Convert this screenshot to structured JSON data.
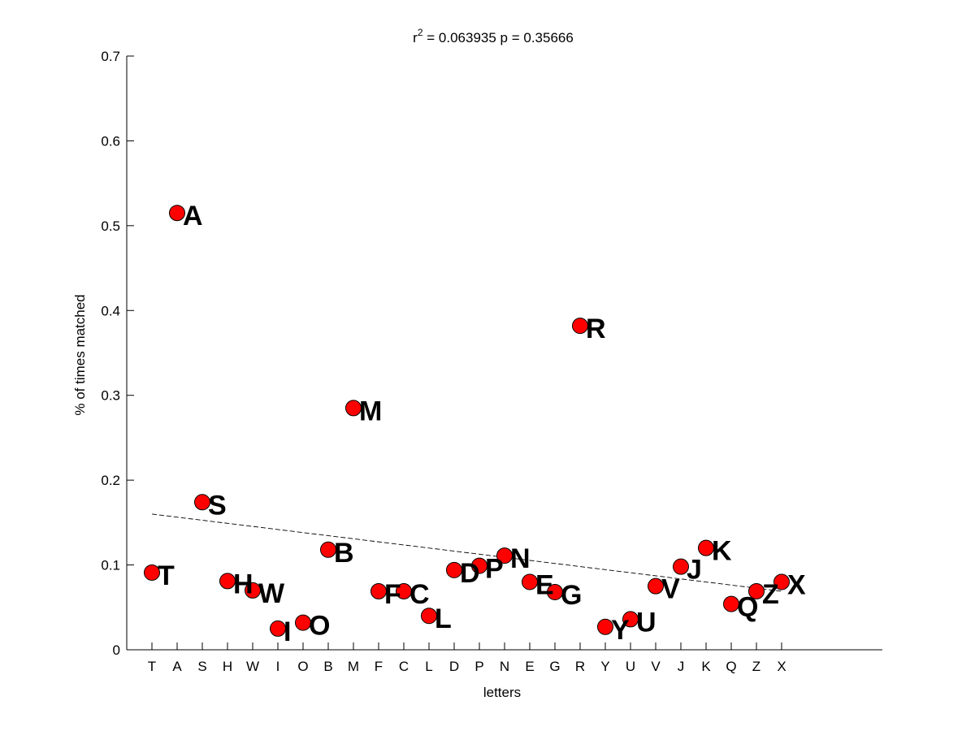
{
  "chart_data": {
    "type": "scatter",
    "title_prefix": "r",
    "title_superscript": "2",
    "title_rest": " = 0.063935 p = 0.35666",
    "xlabel": "letters",
    "ylabel": "% of times matched",
    "categories": [
      "T",
      "A",
      "S",
      "H",
      "W",
      "I",
      "O",
      "B",
      "M",
      "F",
      "C",
      "L",
      "D",
      "P",
      "N",
      "E",
      "G",
      "R",
      "Y",
      "U",
      "V",
      "J",
      "K",
      "Q",
      "Z",
      "X"
    ],
    "values": [
      0.091,
      0.515,
      0.174,
      0.081,
      0.07,
      0.025,
      0.032,
      0.118,
      0.285,
      0.069,
      0.069,
      0.04,
      0.094,
      0.099,
      0.111,
      0.08,
      0.068,
      0.382,
      0.027,
      0.036,
      0.075,
      0.098,
      0.12,
      0.054,
      0.069,
      0.08
    ],
    "ylim": [
      0,
      0.7
    ],
    "yticks": [
      "0",
      "0.1",
      "0.2",
      "0.3",
      "0.4",
      "0.5",
      "0.6",
      "0.7"
    ],
    "xlim": [
      0,
      30
    ],
    "trendline": {
      "x_start": 1,
      "y_start": 0.16,
      "x_end": 26,
      "y_end": 0.069,
      "style": "dashed"
    },
    "marker_color": "#ff0000",
    "marker_edge_color": "#000000",
    "grid": false,
    "legend": "none"
  }
}
